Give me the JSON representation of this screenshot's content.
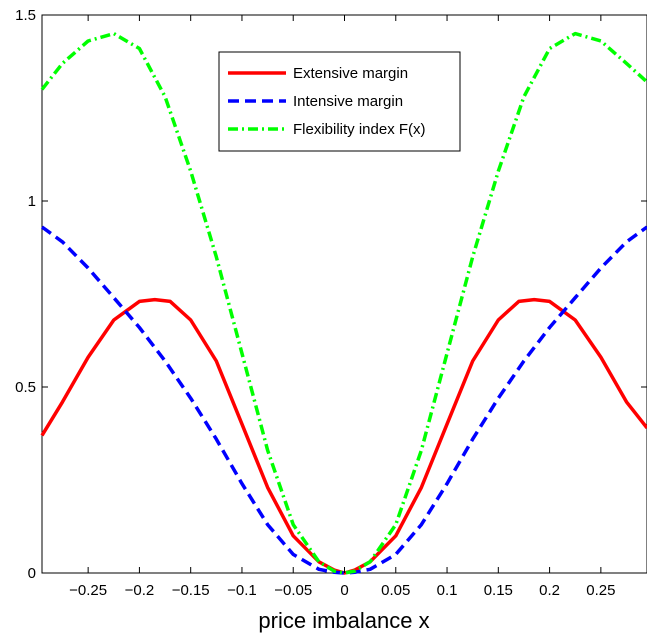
{
  "chart_data": {
    "type": "line",
    "title": "",
    "xlabel": "price imbalance x",
    "ylabel": "",
    "xlim": [
      -0.295,
      0.295
    ],
    "ylim": [
      0,
      1.5
    ],
    "grid": false,
    "legend_position": "top-right",
    "x_ticks": [
      -0.25,
      -0.2,
      -0.15,
      -0.1,
      -0.05,
      0,
      0.05,
      0.1,
      0.15,
      0.2,
      0.25
    ],
    "x_tick_labels": [
      "−0.25",
      "−0.2",
      "−0.15",
      "−0.1",
      "−0.05",
      "0",
      "0.05",
      "0.1",
      "0.15",
      "0.2",
      "0.25"
    ],
    "y_ticks": [
      0,
      0.5,
      1,
      1.5
    ],
    "y_tick_labels": [
      "0",
      "0.5",
      "1",
      "1.5"
    ],
    "series": [
      {
        "name": "Extensive margin",
        "color": "#ff0000",
        "style": "solid",
        "x": [
          -0.295,
          -0.275,
          -0.25,
          -0.225,
          -0.2,
          -0.185,
          -0.17,
          -0.15,
          -0.125,
          -0.1,
          -0.075,
          -0.05,
          -0.025,
          -0.01,
          0,
          0.01,
          0.025,
          0.05,
          0.075,
          0.1,
          0.125,
          0.15,
          0.17,
          0.185,
          0.2,
          0.225,
          0.25,
          0.275,
          0.295
        ],
        "y": [
          0.37,
          0.46,
          0.58,
          0.68,
          0.73,
          0.735,
          0.73,
          0.68,
          0.57,
          0.4,
          0.23,
          0.1,
          0.03,
          0.008,
          0,
          0.008,
          0.03,
          0.1,
          0.23,
          0.4,
          0.57,
          0.68,
          0.73,
          0.735,
          0.73,
          0.68,
          0.58,
          0.46,
          0.39
        ]
      },
      {
        "name": "Intensive margin",
        "color": "#0000ff",
        "style": "dashed",
        "x": [
          -0.295,
          -0.275,
          -0.25,
          -0.225,
          -0.2,
          -0.175,
          -0.15,
          -0.125,
          -0.1,
          -0.075,
          -0.05,
          -0.025,
          -0.01,
          0,
          0.01,
          0.025,
          0.05,
          0.075,
          0.1,
          0.125,
          0.15,
          0.175,
          0.2,
          0.225,
          0.25,
          0.275,
          0.295
        ],
        "y": [
          0.93,
          0.89,
          0.82,
          0.74,
          0.66,
          0.57,
          0.47,
          0.36,
          0.24,
          0.13,
          0.05,
          0.01,
          0.002,
          0,
          0.002,
          0.01,
          0.05,
          0.13,
          0.24,
          0.36,
          0.47,
          0.57,
          0.66,
          0.74,
          0.82,
          0.89,
          0.93
        ]
      },
      {
        "name": "Flexibility index F(x)",
        "color": "#00ff00",
        "style": "dashdot",
        "x": [
          -0.295,
          -0.275,
          -0.25,
          -0.225,
          -0.2,
          -0.175,
          -0.15,
          -0.125,
          -0.1,
          -0.075,
          -0.05,
          -0.025,
          -0.01,
          0,
          0.01,
          0.025,
          0.05,
          0.075,
          0.1,
          0.125,
          0.15,
          0.175,
          0.2,
          0.225,
          0.25,
          0.275,
          0.295
        ],
        "y": [
          1.3,
          1.37,
          1.43,
          1.45,
          1.41,
          1.28,
          1.08,
          0.85,
          0.59,
          0.33,
          0.13,
          0.03,
          0.005,
          0,
          0.005,
          0.03,
          0.13,
          0.33,
          0.59,
          0.85,
          1.08,
          1.28,
          1.41,
          1.45,
          1.43,
          1.37,
          1.32
        ]
      }
    ]
  }
}
